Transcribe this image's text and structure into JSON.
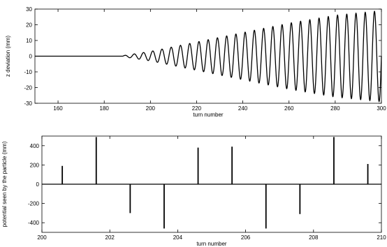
{
  "chart_data": [
    {
      "type": "line",
      "title": "",
      "xlabel": "turn number",
      "ylabel": "z deviation (mm)",
      "xlim": [
        150,
        300
      ],
      "ylim": [
        -30,
        30
      ],
      "xticks": [
        160,
        180,
        200,
        220,
        240,
        260,
        280,
        300
      ],
      "yticks": [
        -30,
        -20,
        -10,
        0,
        10,
        20,
        30
      ],
      "grid": false,
      "legend": "none",
      "series": [
        {
          "oscillation_onset_turn": 188,
          "period_turns": 4,
          "envelope": [
            [
              188,
              0.3
            ],
            [
              200,
              3
            ],
            [
              220,
              9
            ],
            [
              240,
              15
            ],
            [
              260,
              21
            ],
            [
              280,
              26
            ],
            [
              300,
              29
            ]
          ],
          "color": "#000000"
        }
      ]
    },
    {
      "type": "line",
      "title": "",
      "xlabel": "turn number",
      "ylabel": "potential seen by the particle (mm)",
      "xlim": [
        200,
        210
      ],
      "ylim": [
        -500,
        500
      ],
      "xticks": [
        200,
        202,
        204,
        206,
        208,
        210
      ],
      "yticks": [
        -400,
        -200,
        0,
        200,
        400
      ],
      "grid": false,
      "legend": "none",
      "series": [
        {
          "spikes": [
            [
              200.6,
              190
            ],
            [
              201.6,
              490
            ],
            [
              202.6,
              -300
            ],
            [
              203.6,
              -460
            ],
            [
              204.6,
              380
            ],
            [
              205.6,
              390
            ],
            [
              206.6,
              -460
            ],
            [
              207.6,
              -310
            ],
            [
              208.6,
              490
            ],
            [
              209.6,
              210
            ]
          ],
          "color": "#000000"
        }
      ]
    }
  ]
}
